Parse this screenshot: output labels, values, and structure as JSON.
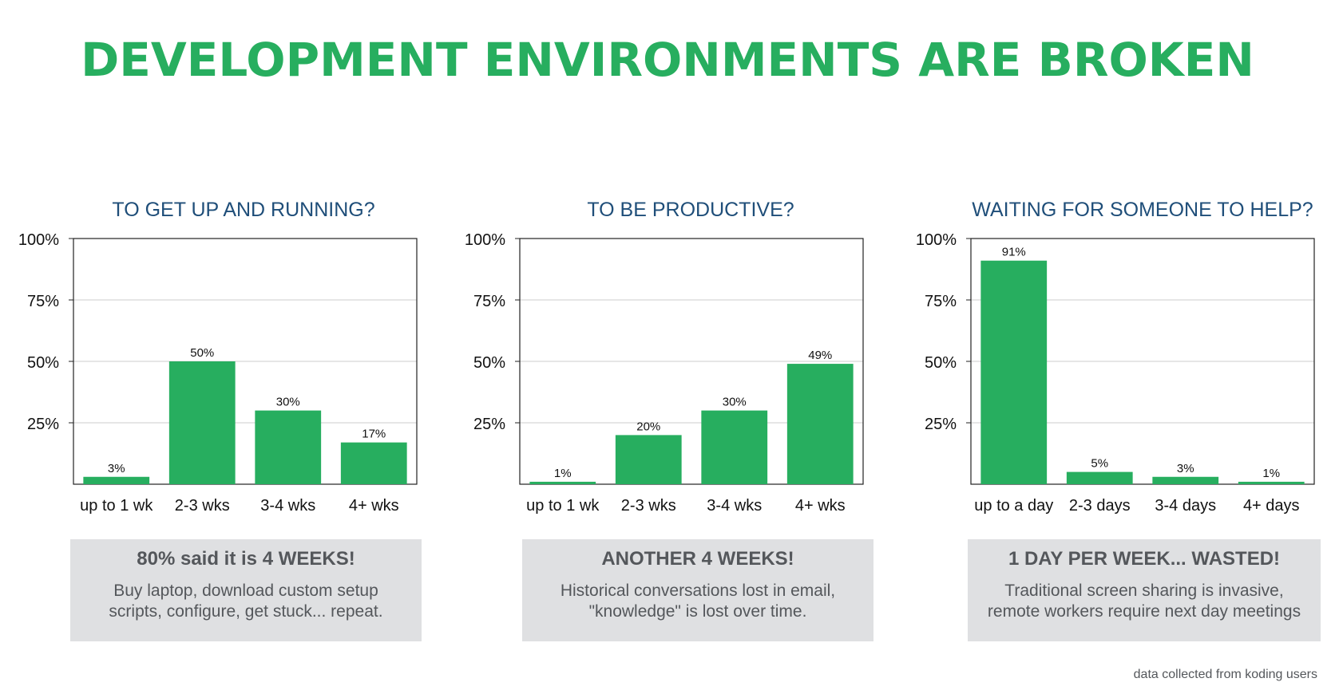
{
  "title": "DEVELOPMENT ENVIRONMENTS ARE BROKEN",
  "footnote": "data collected from koding users",
  "colors": {
    "title": "#27ae5f",
    "bar": "#27ae5f",
    "panel_title": "#1f4e79",
    "box_bg": "#dfe0e2",
    "box_text": "#54575b",
    "grid": "#cccccc"
  },
  "chart_data": [
    {
      "type": "bar",
      "title": "TO GET UP AND RUNNING?",
      "categories": [
        "up to 1 wk",
        "2-3 wks",
        "3-4 wks",
        "4+ wks"
      ],
      "values": [
        3,
        50,
        30,
        17
      ],
      "data_labels": [
        "3%",
        "50%",
        "30%",
        "17%"
      ],
      "y_ticks": [
        "25%",
        "50%",
        "75%",
        "100%"
      ],
      "ylim": [
        0,
        100
      ],
      "grid": true,
      "box_headline": "80% said it is 4 WEEKS!",
      "box_text": [
        "Buy laptop, download custom setup",
        "scripts, configure, get stuck... repeat."
      ]
    },
    {
      "type": "bar",
      "title": "TO BE PRODUCTIVE?",
      "categories": [
        "up to 1 wk",
        "2-3 wks",
        "3-4 wks",
        "4+ wks"
      ],
      "values": [
        1,
        20,
        30,
        49
      ],
      "data_labels": [
        "1%",
        "20%",
        "30%",
        "49%"
      ],
      "y_ticks": [
        "25%",
        "50%",
        "75%",
        "100%"
      ],
      "ylim": [
        0,
        100
      ],
      "grid": true,
      "box_headline": "ANOTHER 4 WEEKS!",
      "box_text": [
        "Historical conversations lost in email,",
        "\"knowledge\" is lost over time."
      ]
    },
    {
      "type": "bar",
      "title": "WAITING FOR SOMEONE TO HELP?",
      "categories": [
        "up to a day",
        "2-3 days",
        "3-4 days",
        "4+ days"
      ],
      "values": [
        91,
        5,
        3,
        1
      ],
      "data_labels": [
        "91%",
        "5%",
        "3%",
        "1%"
      ],
      "y_ticks": [
        "25%",
        "50%",
        "75%",
        "100%"
      ],
      "ylim": [
        0,
        100
      ],
      "grid": true,
      "box_headline": "1 DAY PER WEEK... WASTED!",
      "box_text": [
        "Traditional screen sharing is invasive,",
        "remote workers require next day meetings"
      ]
    }
  ]
}
